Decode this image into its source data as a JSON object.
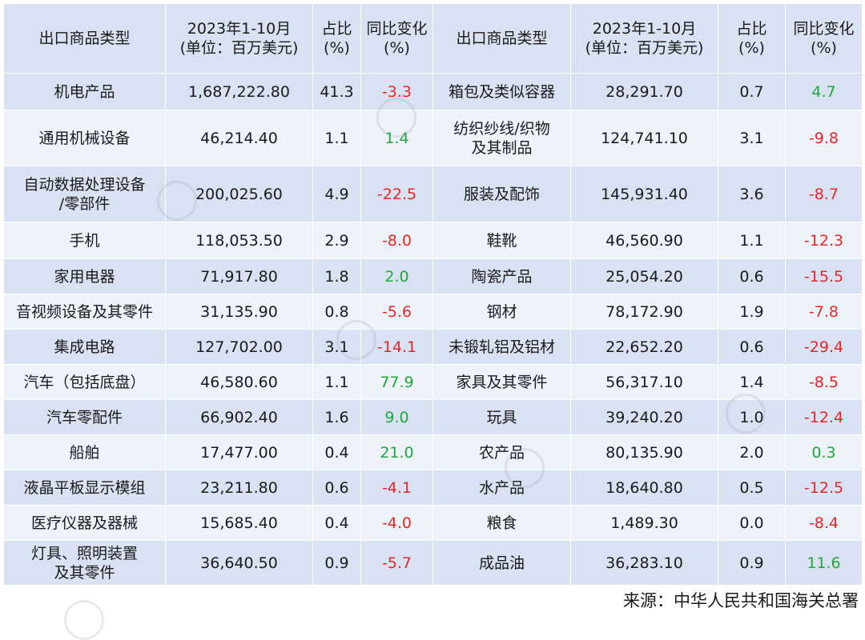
{
  "table": {
    "headers": [
      {
        "line1": "出口商品类型",
        "line2": ""
      },
      {
        "line1": "2023年1-10月",
        "line2": "(单位：百万美元)"
      },
      {
        "line1": "占比",
        "line2": "(%)"
      },
      {
        "line1": "同比变化",
        "line2": "(%)"
      },
      {
        "line1": "出口商品类型",
        "line2": ""
      },
      {
        "line1": "2023年1-10月",
        "line2": "(单位：百万美元)"
      },
      {
        "line1": "占比",
        "line2": "(%)"
      },
      {
        "line1": "同比变化",
        "line2": "(%)"
      }
    ],
    "rows": [
      {
        "name1": "机电产品",
        "name1b": "",
        "value1": "1,687,222.80",
        "share1": "41.3",
        "yoy1": "-3.3",
        "name2": "箱包及类似容器",
        "name2b": "",
        "value2": "28,291.70",
        "share2": "0.7",
        "yoy2": "4.7"
      },
      {
        "name1": "通用机械设备",
        "name1b": "",
        "value1": "46,214.40",
        "share1": "1.1",
        "yoy1": "1.4",
        "name2": "纺织纱线/织物",
        "name2b": "及其制品",
        "value2": "124,741.10",
        "share2": "3.1",
        "yoy2": "-9.8"
      },
      {
        "name1": "自动数据处理设备",
        "name1b": "/零部件",
        "value1": "200,025.60",
        "share1": "4.9",
        "yoy1": "-22.5",
        "name2": "服装及配饰",
        "name2b": "",
        "value2": "145,931.40",
        "share2": "3.6",
        "yoy2": "-8.7"
      },
      {
        "name1": "手机",
        "name1b": "",
        "value1": "118,053.50",
        "share1": "2.9",
        "yoy1": "-8.0",
        "name2": "鞋靴",
        "name2b": "",
        "value2": "46,560.90",
        "share2": "1.1",
        "yoy2": "-12.3"
      },
      {
        "name1": "家用电器",
        "name1b": "",
        "value1": "71,917.80",
        "share1": "1.8",
        "yoy1": "2.0",
        "name2": "陶瓷产品",
        "name2b": "",
        "value2": "25,054.20",
        "share2": "0.6",
        "yoy2": "-15.5"
      },
      {
        "name1": "音视频设备及其零件",
        "name1b": "",
        "value1": "31,135.90",
        "share1": "0.8",
        "yoy1": "-5.6",
        "name2": "钢材",
        "name2b": "",
        "value2": "78,172.90",
        "share2": "1.9",
        "yoy2": "-7.8"
      },
      {
        "name1": "集成电路",
        "name1b": "",
        "value1": "127,702.00",
        "share1": "3.1",
        "yoy1": "-14.1",
        "name2": "未锻轧铝及铝材",
        "name2b": "",
        "value2": "22,652.20",
        "share2": "0.6",
        "yoy2": "-29.4"
      },
      {
        "name1": "汽车（包括底盘）",
        "name1b": "",
        "value1": "46,580.60",
        "share1": "1.1",
        "yoy1": "77.9",
        "name2": "家具及其零件",
        "name2b": "",
        "value2": "56,317.10",
        "share2": "1.4",
        "yoy2": "-8.5"
      },
      {
        "name1": "汽车零配件",
        "name1b": "",
        "value1": "66,902.40",
        "share1": "1.6",
        "yoy1": "9.0",
        "name2": "玩具",
        "name2b": "",
        "value2": "39,240.20",
        "share2": "1.0",
        "yoy2": "-12.4"
      },
      {
        "name1": "船舶",
        "name1b": "",
        "value1": "17,477.00",
        "share1": "0.4",
        "yoy1": "21.0",
        "name2": "农产品",
        "name2b": "",
        "value2": "80,135.90",
        "share2": "2.0",
        "yoy2": "0.3"
      },
      {
        "name1": "液晶平板显示模组",
        "name1b": "",
        "value1": "23,211.80",
        "share1": "0.6",
        "yoy1": "-4.1",
        "name2": "水产品",
        "name2b": "",
        "value2": "18,640.80",
        "share2": "0.5",
        "yoy2": "-12.5"
      },
      {
        "name1": "医疗仪器及器械",
        "name1b": "",
        "value1": "15,685.40",
        "share1": "0.4",
        "yoy1": "-4.0",
        "name2": "粮食",
        "name2b": "",
        "value2": "1,489.30",
        "share2": "0.0",
        "yoy2": "-8.4"
      },
      {
        "name1": "灯具、照明装置",
        "name1b": "及其零件",
        "value1": "36,640.50",
        "share1": "0.9",
        "yoy1": "-5.7",
        "name2": "成品油",
        "name2b": "",
        "value2": "36,283.10",
        "share2": "0.9",
        "yoy2": "11.6"
      }
    ]
  },
  "source_note": "来源：中华人民共和国海关总署",
  "colors": {
    "header_bg": "#d9e2f3",
    "row_bg_a": "#d9e2f3",
    "row_bg_b": "#eef2f9",
    "negative": "#e8262a",
    "positive": "#1fa83d"
  }
}
